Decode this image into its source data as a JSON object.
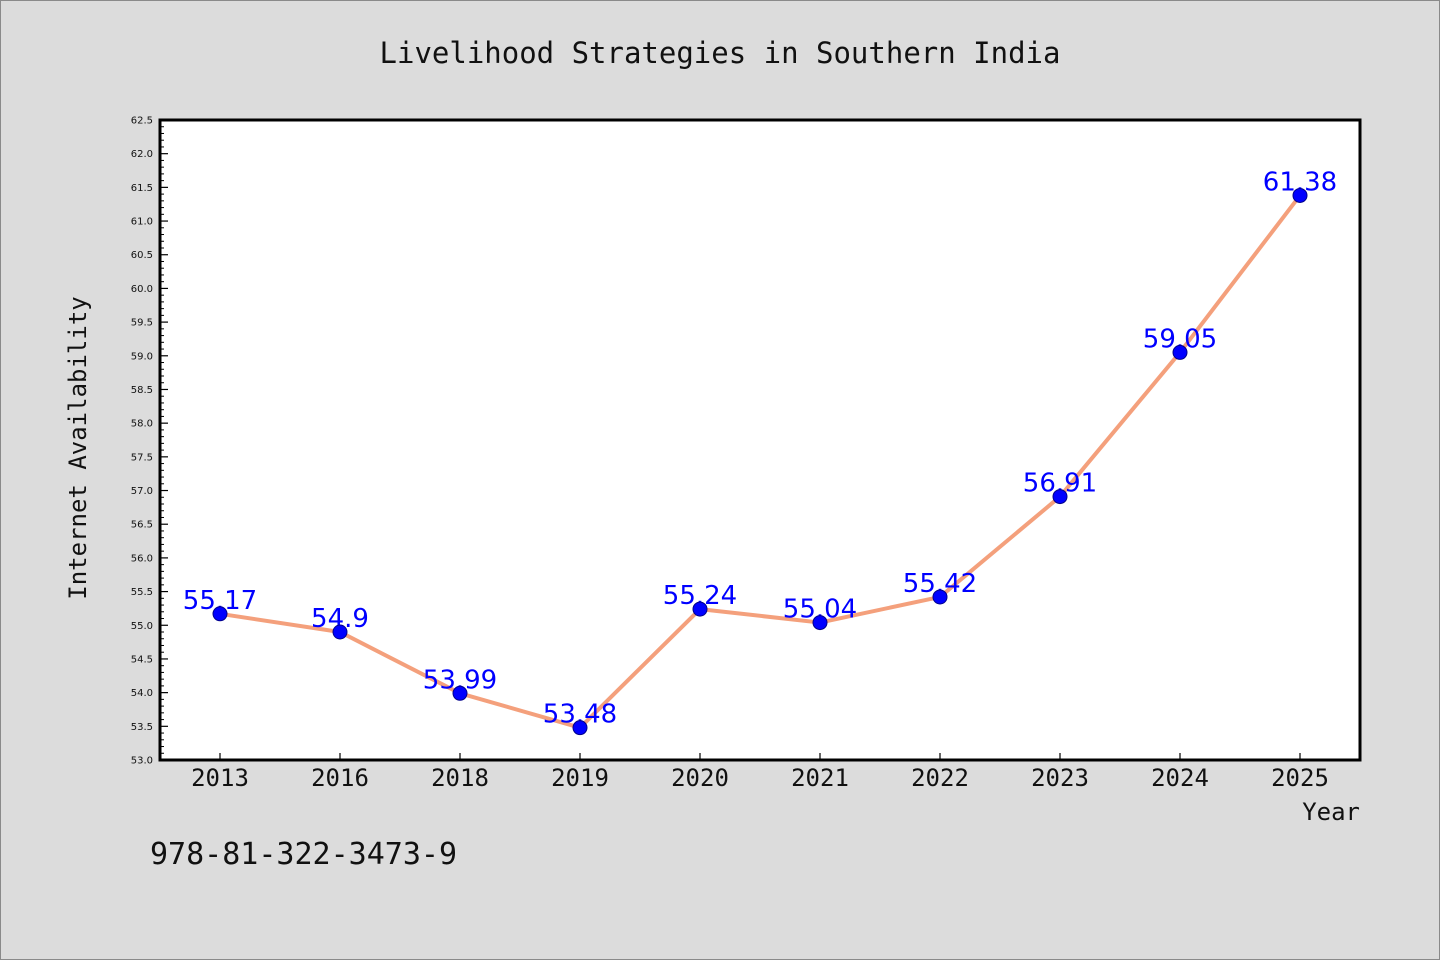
{
  "chart_data": {
    "type": "line",
    "title": "Livelihood Strategies in Southern India",
    "xlabel": "Year",
    "ylabel": "Internet Availability",
    "categories": [
      "2013",
      "2016",
      "2018",
      "2019",
      "2020",
      "2021",
      "2022",
      "2023",
      "2024",
      "2025"
    ],
    "series": [
      {
        "values": [
          55.17,
          54.9,
          53.99,
          53.48,
          55.24,
          55.04,
          55.42,
          56.91,
          59.05,
          61.38
        ],
        "show_data_labels": true
      }
    ],
    "ylim": [
      53.0,
      62.5
    ],
    "yticks": [
      "53.0",
      "53.5",
      "54.0",
      "54.5",
      "55.0",
      "55.5",
      "56.0",
      "56.5",
      "57.0",
      "57.5",
      "58.0",
      "58.5",
      "59.0",
      "59.5",
      "60.0",
      "60.5",
      "61.0",
      "61.5",
      "62.0",
      "62.5"
    ],
    "grid": false,
    "legend": false
  },
  "footer_text": "978-81-322-3473-9",
  "colors": {
    "figure_background": "#dcdcdc",
    "plot_background": "#ffffff",
    "line": "#f4a07c",
    "marker": "#0000ff",
    "marker_edge": "#00008b",
    "data_label": "#0000ff"
  }
}
